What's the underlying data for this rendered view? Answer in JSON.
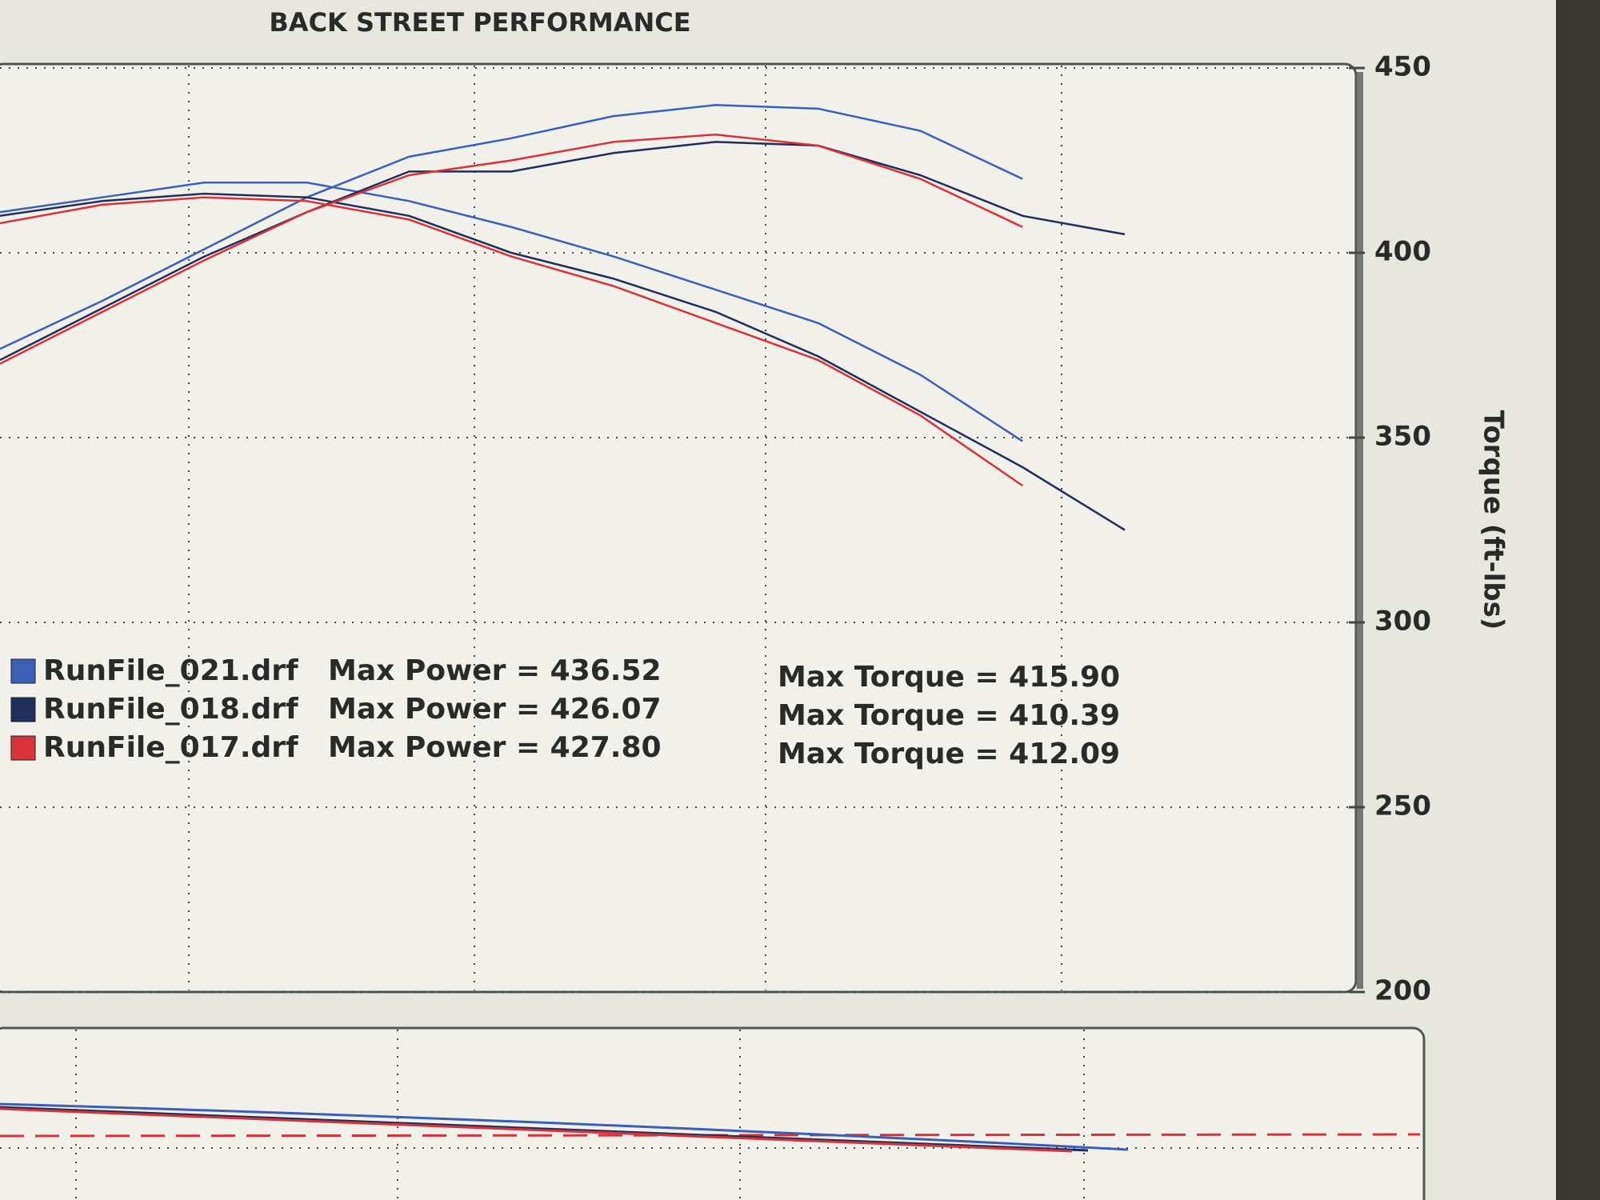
{
  "chart_data": {
    "type": "line",
    "title": "BACK STREET PERFORMANCE",
    "y_label": "Torque (ft-lbs)",
    "categories": [
      null,
      null,
      null,
      null,
      null,
      null,
      null,
      null,
      null,
      null,
      null,
      null,
      null,
      null
    ],
    "ylim": [
      200,
      450
    ],
    "yticks": [
      200,
      250,
      300,
      350,
      400,
      450
    ],
    "grid": true,
    "series": [
      {
        "name": "RunFile_021.drf",
        "color": "#3a5fb5",
        "power_label": "Max Power = 436.52",
        "torque_label": "Max Torque = 415.90",
        "power": [
          374,
          387,
          401,
          415,
          426,
          431,
          437,
          440,
          439,
          433,
          420,
          null,
          null,
          null
        ],
        "torque": [
          411,
          415,
          419,
          419,
          414,
          407,
          399,
          390,
          381,
          367,
          349,
          null,
          null,
          null
        ]
      },
      {
        "name": "RunFile_018.drf",
        "color": "#1f2f5a",
        "power_label": "Max Power = 426.07",
        "torque_label": "Max Torque = 410.39",
        "power": [
          371,
          385,
          399,
          411,
          422,
          422,
          427,
          430,
          429,
          421,
          410,
          405,
          null,
          null
        ],
        "torque": [
          410,
          414,
          416,
          415,
          410,
          400,
          393,
          384,
          372,
          357,
          342,
          325,
          null,
          null
        ]
      },
      {
        "name": "RunFile_017.drf",
        "color": "#d8323a",
        "power_label": "Max Power = 427.80",
        "torque_label": "Max Torque = 412.09",
        "power": [
          370,
          384,
          398,
          411,
          421,
          425,
          430,
          432,
          429,
          420,
          407,
          null,
          null,
          null
        ],
        "torque": [
          408,
          413,
          415,
          414,
          409,
          399,
          391,
          381,
          371,
          356,
          337,
          null,
          null,
          null
        ]
      }
    ]
  }
}
